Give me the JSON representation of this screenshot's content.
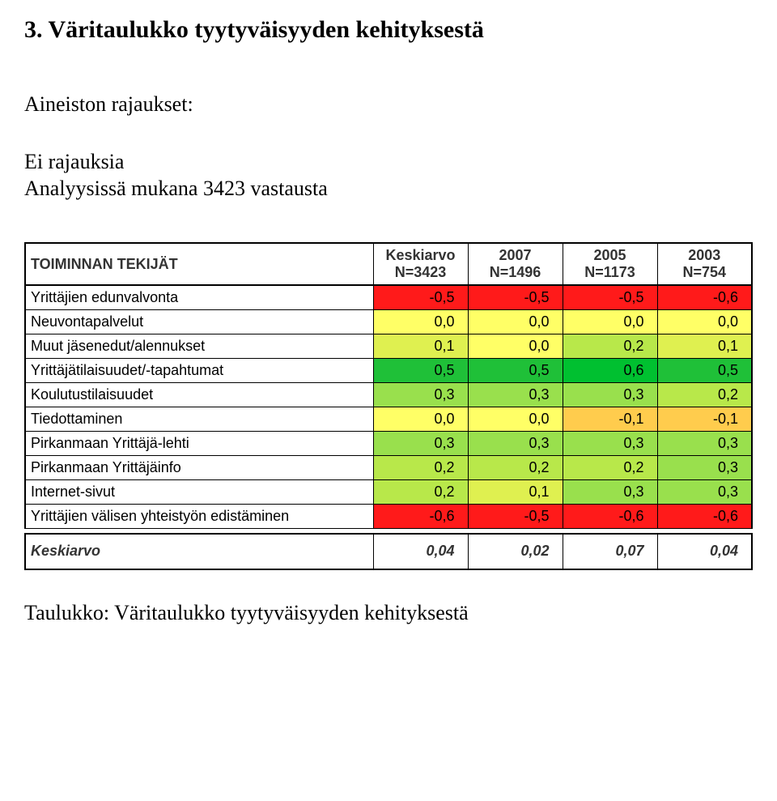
{
  "title": "3. Väritaulukko tyytyväisyyden kehityksestä",
  "subhead": "Aineiston rajaukset:",
  "para_line1": "Ei rajauksia",
  "para_line2": "Analyysissä mukana 3423 vastausta",
  "caption": "Taulukko: Väritaulukko tyytyväisyyden kehityksestä",
  "table": {
    "header": {
      "row_label": "TOIMINNAN TEKIJÄT",
      "cols_top": [
        "Keskiarvo",
        "2007",
        "2005",
        "2003"
      ],
      "cols_bot": [
        "N=3423",
        "N=1496",
        "N=1173",
        "N=754"
      ]
    },
    "rows": [
      {
        "label": "Yrittäjien edunvalvonta",
        "vals": [
          "-0,5",
          "-0,5",
          "-0,5",
          "-0,6"
        ]
      },
      {
        "label": "Neuvontapalvelut",
        "vals": [
          "0,0",
          "0,0",
          "0,0",
          "0,0"
        ]
      },
      {
        "label": "Muut jäsenedut/alennukset",
        "vals": [
          "0,1",
          "0,0",
          "0,2",
          "0,1"
        ]
      },
      {
        "label": "Yrittäjätilaisuudet/-tapahtumat",
        "vals": [
          "0,5",
          "0,5",
          "0,6",
          "0,5"
        ]
      },
      {
        "label": "Koulutustilaisuudet",
        "vals": [
          "0,3",
          "0,3",
          "0,3",
          "0,2"
        ]
      },
      {
        "label": "Tiedottaminen",
        "vals": [
          "0,0",
          "0,0",
          "-0,1",
          "-0,1"
        ]
      },
      {
        "label": "Pirkanmaan Yrittäjä-lehti",
        "vals": [
          "0,3",
          "0,3",
          "0,3",
          "0,3"
        ]
      },
      {
        "label": "Pirkanmaan Yrittäjäinfo",
        "vals": [
          "0,2",
          "0,2",
          "0,2",
          "0,3"
        ]
      },
      {
        "label": "Internet-sivut",
        "vals": [
          "0,2",
          "0,1",
          "0,3",
          "0,3"
        ]
      },
      {
        "label": "Yrittäjien välisen yhteistyön edistäminen",
        "vals": [
          "-0,6",
          "-0,5",
          "-0,6",
          "-0,6"
        ]
      }
    ],
    "footer": {
      "label": "Keskiarvo",
      "vals": [
        "0,04",
        "0,02",
        "0,07",
        "0,04"
      ]
    },
    "colors": {
      "scale_min_value": -0.6,
      "scale_max_value": 0.6,
      "scale_neg": "#ff1a1a",
      "scale_mid": "#ffff66",
      "scale_pos": "#00c030",
      "scale_midneg": "#ff9933",
      "scale_midpos": "#99e04d",
      "cell_bg": [
        [
          "#ff1a1a",
          "#ff1a1a",
          "#ff1a1a",
          "#ff1a1a"
        ],
        [
          "#ffff66",
          "#ffff66",
          "#ffff66",
          "#ffff66"
        ],
        [
          "#dff050",
          "#ffff66",
          "#b8e84a",
          "#dff050"
        ],
        [
          "#1fc038",
          "#1fc038",
          "#00c030",
          "#1fc038"
        ],
        [
          "#99e04d",
          "#99e04d",
          "#99e04d",
          "#b8e84a"
        ],
        [
          "#ffff66",
          "#ffff66",
          "#ffcc4d",
          "#ffcc4d"
        ],
        [
          "#99e04d",
          "#99e04d",
          "#99e04d",
          "#99e04d"
        ],
        [
          "#b8e84a",
          "#b8e84a",
          "#b8e84a",
          "#99e04d"
        ],
        [
          "#b8e84a",
          "#dff050",
          "#99e04d",
          "#99e04d"
        ],
        [
          "#ff1a1a",
          "#ff1a1a",
          "#ff1a1a",
          "#ff1a1a"
        ]
      ]
    },
    "fontsize_pt": 14,
    "header_fontsize_pt": 14
  }
}
